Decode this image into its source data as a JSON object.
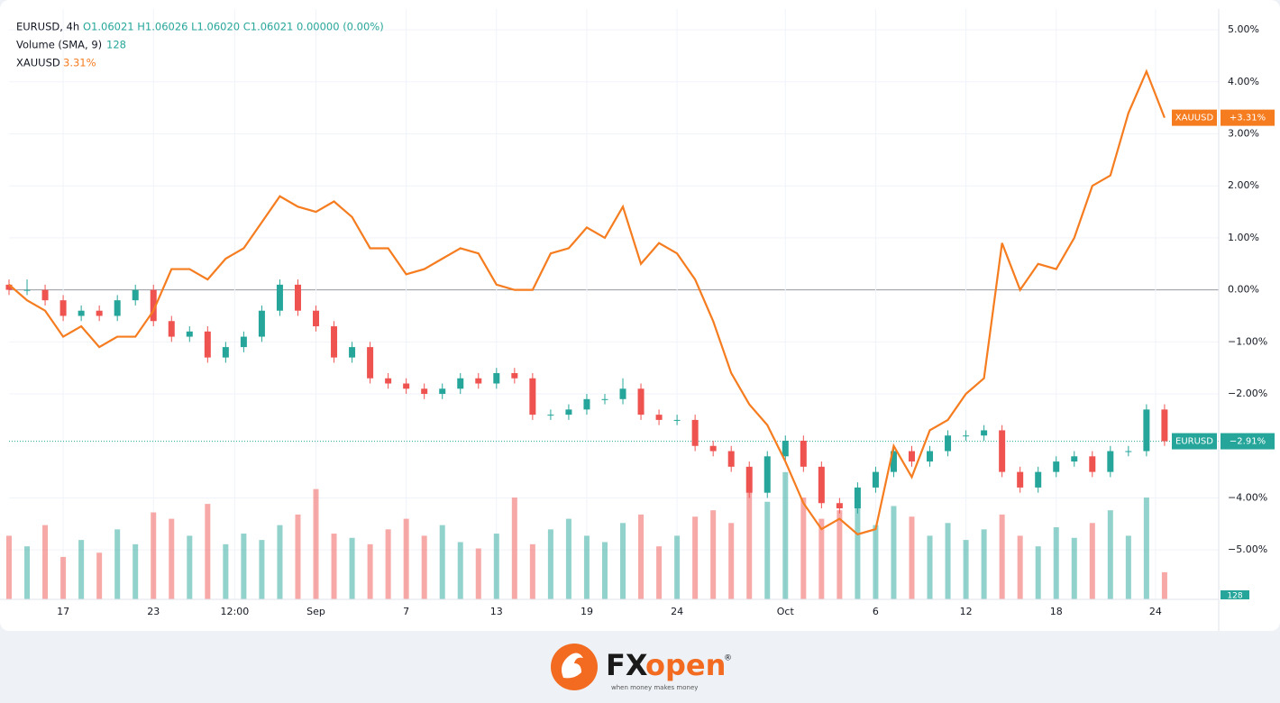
{
  "header": {
    "symbol": "EURUSD, 4h",
    "ohlc": "O1.06021 H1.06026 L1.06020 C1.06021 0.00000 (0.00%)",
    "volume_study": "Volume (SMA, 9)",
    "volume_value": "128",
    "compare_symbol": "XAUUSD",
    "compare_value": "3.31%"
  },
  "price_tags": {
    "xau_name": "XAUUSD",
    "xau_value": "+3.31%",
    "eur_name": "EURUSD",
    "eur_value": "−2.91%",
    "volume": "128"
  },
  "footer": {
    "brand_a": "FX",
    "brand_b": "open",
    "tagline": "when money makes money",
    "reg": "®"
  },
  "chart_data": {
    "type": "candlestick",
    "ylim": [
      -5.95,
      5.4
    ],
    "yticks": [
      {
        "value": 5,
        "label": "5.00%"
      },
      {
        "value": 4,
        "label": "4.00%"
      },
      {
        "value": 3,
        "label": "3.00%"
      },
      {
        "value": 2,
        "label": "2.00%"
      },
      {
        "value": 1,
        "label": "1.00%"
      },
      {
        "value": 0,
        "label": "0.00%"
      },
      {
        "value": -1,
        "label": "−1.00%"
      },
      {
        "value": -2,
        "label": "−2.00%"
      },
      {
        "value": -4,
        "label": "−4.00%"
      },
      {
        "value": -5,
        "label": "−5.00%"
      }
    ],
    "xlim": [
      0,
      67
    ],
    "xticks": [
      {
        "value": 3,
        "label": "17"
      },
      {
        "value": 8,
        "label": "23"
      },
      {
        "value": 12.5,
        "label": "12:00"
      },
      {
        "value": 17,
        "label": "Sep"
      },
      {
        "value": 22,
        "label": "7"
      },
      {
        "value": 27,
        "label": "13"
      },
      {
        "value": 32,
        "label": "19"
      },
      {
        "value": 37,
        "label": "24"
      },
      {
        "value": 43,
        "label": "Oct"
      },
      {
        "value": 48,
        "label": "6"
      },
      {
        "value": 53,
        "label": "12"
      },
      {
        "value": 58,
        "label": "18"
      },
      {
        "value": 63.5,
        "label": "24"
      }
    ],
    "grid": true,
    "up_color": "#26a69a",
    "down_color": "#ef5350",
    "candles": {
      "name": "EURUSD",
      "close": [
        0,
        0,
        -0.2,
        -0.5,
        -0.4,
        -0.5,
        -0.2,
        0,
        -0.6,
        -0.9,
        -0.8,
        -1.3,
        -1.1,
        -0.9,
        -0.4,
        0.1,
        -0.4,
        -0.7,
        -1.3,
        -1.1,
        -1.7,
        -1.8,
        -1.9,
        -2.0,
        -1.9,
        -1.7,
        -1.8,
        -1.6,
        -1.7,
        -2.4,
        -2.4,
        -2.3,
        -2.1,
        -2.1,
        -1.9,
        -2.4,
        -2.5,
        -2.5,
        -3.0,
        -3.1,
        -3.4,
        -3.9,
        -3.2,
        -2.9,
        -3.4,
        -4.1,
        -4.2,
        -3.8,
        -3.5,
        -3.1,
        -3.3,
        -3.1,
        -2.8,
        -2.8,
        -2.7,
        -3.5,
        -3.8,
        -3.5,
        -3.3,
        -3.2,
        -3.5,
        -3.1,
        -3.1,
        -2.3,
        -2.91
      ],
      "open": [
        0.1,
        0,
        0,
        -0.2,
        -0.5,
        -0.4,
        -0.5,
        -0.2,
        0,
        -0.6,
        -0.9,
        -0.8,
        -1.3,
        -1.1,
        -0.9,
        -0.4,
        0.1,
        -0.4,
        -0.7,
        -1.3,
        -1.1,
        -1.7,
        -1.8,
        -1.9,
        -2.0,
        -1.9,
        -1.7,
        -1.8,
        -1.6,
        -1.7,
        -2.4,
        -2.4,
        -2.3,
        -2.1,
        -2.1,
        -1.9,
        -2.4,
        -2.5,
        -2.5,
        -3.0,
        -3.1,
        -3.4,
        -3.9,
        -3.2,
        -2.9,
        -3.4,
        -4.1,
        -4.2,
        -3.8,
        -3.5,
        -3.1,
        -3.3,
        -3.1,
        -2.8,
        -2.8,
        -2.7,
        -3.5,
        -3.8,
        -3.5,
        -3.3,
        -3.2,
        -3.5,
        -3.1,
        -3.1,
        -2.3
      ],
      "high": [
        0.2,
        0.2,
        0.1,
        -0.1,
        -0.3,
        -0.3,
        -0.1,
        0.1,
        0.1,
        -0.5,
        -0.7,
        -0.7,
        -1.0,
        -0.8,
        -0.3,
        0.2,
        0.2,
        -0.3,
        -0.6,
        -1.0,
        -1.0,
        -1.6,
        -1.7,
        -1.8,
        -1.8,
        -1.6,
        -1.6,
        -1.5,
        -1.5,
        -1.6,
        -2.3,
        -2.2,
        -2.0,
        -2.0,
        -1.7,
        -1.8,
        -2.3,
        -2.4,
        -2.4,
        -2.9,
        -3.0,
        -3.3,
        -3.1,
        -2.8,
        -2.8,
        -3.3,
        -4.0,
        -3.7,
        -3.4,
        -3.0,
        -3.0,
        -3.0,
        -2.7,
        -2.7,
        -2.6,
        -2.6,
        -3.4,
        -3.4,
        -3.2,
        -3.1,
        -3.1,
        -3.0,
        -3.0,
        -2.2,
        -2.2
      ],
      "low": [
        -0.1,
        -0.1,
        -0.3,
        -0.6,
        -0.6,
        -0.6,
        -0.6,
        -0.3,
        -0.7,
        -1.0,
        -1.0,
        -1.4,
        -1.4,
        -1.2,
        -1.0,
        -0.5,
        -0.5,
        -0.8,
        -1.4,
        -1.4,
        -1.8,
        -1.9,
        -2.0,
        -2.1,
        -2.1,
        -2.0,
        -1.9,
        -1.9,
        -1.8,
        -2.5,
        -2.5,
        -2.5,
        -2.4,
        -2.2,
        -2.2,
        -2.5,
        -2.6,
        -2.6,
        -3.1,
        -3.2,
        -3.5,
        -4.0,
        -4.0,
        -3.3,
        -3.5,
        -4.2,
        -4.3,
        -4.3,
        -3.9,
        -3.6,
        -3.4,
        -3.4,
        -3.2,
        -2.9,
        -2.9,
        -3.6,
        -3.9,
        -3.9,
        -3.6,
        -3.4,
        -3.6,
        -3.6,
        -3.2,
        -3.2,
        -3.0
      ]
    },
    "line": {
      "name": "XAUUSD",
      "color": "#f57c1f",
      "values": [
        0.1,
        -0.2,
        -0.4,
        -0.9,
        -0.7,
        -1.1,
        -0.9,
        -0.9,
        -0.4,
        0.4,
        0.4,
        0.2,
        0.6,
        0.8,
        1.3,
        1.8,
        1.6,
        1.5,
        1.7,
        1.4,
        0.8,
        0.8,
        0.3,
        0.4,
        0.6,
        0.8,
        0.7,
        0.1,
        0.0,
        0.0,
        0.7,
        0.8,
        1.2,
        1.0,
        1.6,
        0.5,
        0.9,
        0.7,
        0.2,
        -0.6,
        -1.6,
        -2.2,
        -2.6,
        -3.3,
        -4.1,
        -4.6,
        -4.4,
        -4.7,
        -4.6,
        -3.0,
        -3.6,
        -2.7,
        -2.5,
        -2.0,
        -1.7,
        0.9,
        0.0,
        0.5,
        0.4,
        1.0,
        2.0,
        2.2,
        3.4,
        4.2,
        3.31
      ]
    },
    "volume": {
      "name": "Volume",
      "max": 680,
      "values": [
        300,
        250,
        350,
        200,
        280,
        220,
        330,
        260,
        410,
        380,
        300,
        450,
        260,
        310,
        280,
        350,
        400,
        520,
        310,
        290,
        260,
        330,
        380,
        300,
        350,
        270,
        240,
        310,
        480,
        260,
        330,
        380,
        300,
        270,
        360,
        400,
        250,
        300,
        390,
        420,
        360,
        510,
        460,
        600,
        480,
        380,
        420,
        520,
        350,
        440,
        390,
        300,
        360,
        280,
        330,
        400,
        300,
        250,
        340,
        290,
        360,
        420,
        300,
        480,
        128
      ]
    }
  }
}
